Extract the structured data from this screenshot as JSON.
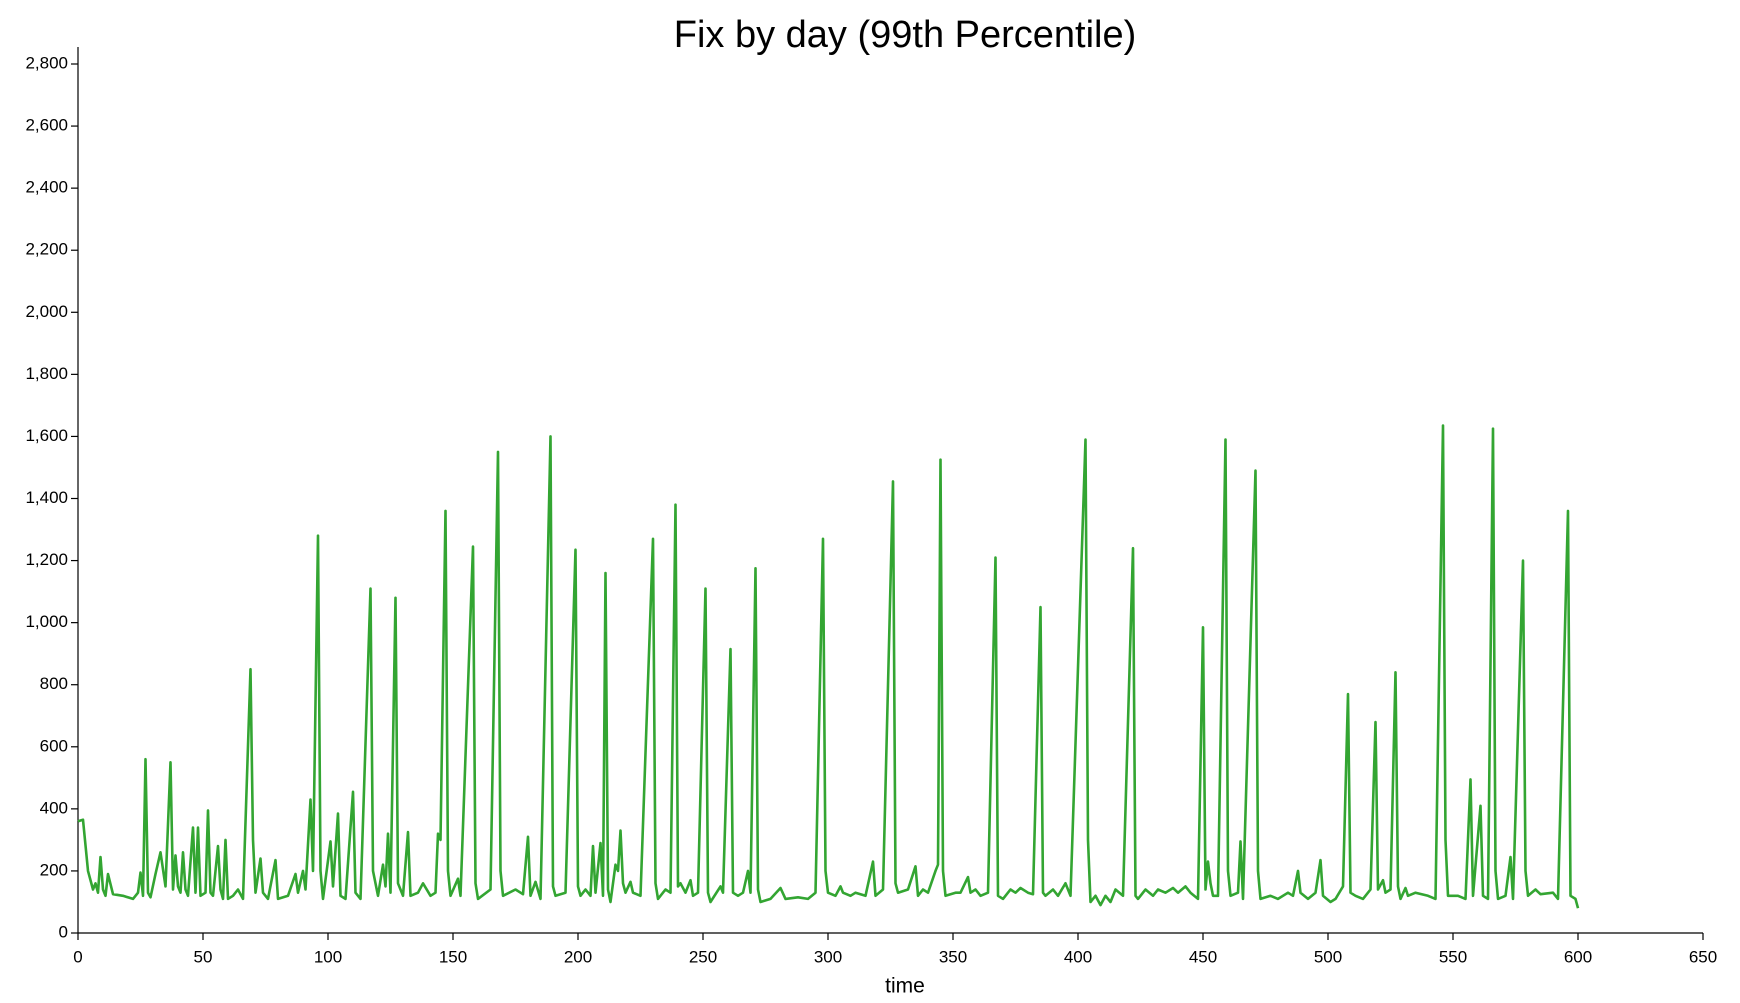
{
  "chart_data": {
    "type": "line",
    "title": "Fix by day (99th Percentile)",
    "x_label": "time",
    "x": [
      0,
      2,
      4,
      6,
      7,
      8,
      9,
      10,
      11,
      12,
      14,
      18,
      22,
      24,
      25,
      26,
      27,
      28,
      29,
      31,
      33,
      35,
      37,
      38,
      39,
      40,
      41,
      42,
      43,
      44,
      46,
      47,
      48,
      49,
      51,
      52,
      53,
      54,
      56,
      57,
      58,
      59,
      60,
      62,
      64,
      66,
      69,
      70,
      71,
      73,
      74,
      76,
      79,
      80,
      84,
      87,
      88,
      90,
      91,
      93,
      94,
      96,
      97,
      98,
      101,
      102,
      104,
      105,
      107,
      110,
      111,
      113,
      117,
      118,
      120,
      122,
      123,
      124,
      125,
      127,
      128,
      130,
      132,
      133,
      136,
      138,
      141,
      143,
      144,
      145,
      147,
      148,
      149,
      152,
      153,
      158,
      159,
      160,
      165,
      168,
      169,
      170,
      175,
      178,
      180,
      181,
      183,
      185,
      189,
      190,
      191,
      195,
      199,
      200,
      201,
      203,
      205,
      206,
      207,
      209,
      210,
      211,
      212,
      213,
      215,
      216,
      217,
      218,
      219,
      221,
      222,
      225,
      230,
      231,
      232,
      235,
      237,
      239,
      240,
      241,
      243,
      245,
      246,
      248,
      251,
      252,
      253,
      257,
      258,
      261,
      262,
      264,
      266,
      268,
      269,
      271,
      272,
      273,
      277,
      281,
      283,
      288,
      292,
      295,
      298,
      299,
      300,
      303,
      305,
      306,
      309,
      311,
      315,
      318,
      319,
      322,
      326,
      327,
      328,
      332,
      335,
      336,
      338,
      340,
      343,
      344,
      345,
      346,
      347,
      351,
      353,
      356,
      357,
      359,
      361,
      364,
      367,
      368,
      370,
      373,
      375,
      377,
      380,
      382,
      385,
      386,
      387,
      390,
      392,
      395,
      397,
      403,
      404,
      405,
      407,
      409,
      411,
      413,
      415,
      418,
      422,
      423,
      424,
      427,
      430,
      432,
      435,
      438,
      440,
      443,
      445,
      448,
      450,
      451,
      452,
      453,
      454,
      456,
      459,
      460,
      461,
      464,
      465,
      466,
      471,
      472,
      473,
      477,
      480,
      484,
      486,
      488,
      489,
      492,
      495,
      497,
      498,
      501,
      503,
      506,
      508,
      509,
      511,
      514,
      517,
      519,
      520,
      522,
      523,
      525,
      527,
      528,
      529,
      531,
      532,
      535,
      540,
      543,
      546,
      547,
      548,
      552,
      555,
      557,
      558,
      561,
      562,
      564,
      566,
      567,
      568,
      571,
      573,
      574,
      578,
      579,
      580,
      583,
      585,
      590,
      592,
      596,
      597,
      599,
      600
    ],
    "series": [
      {
        "name": "99th Percentile",
        "color": "#33a532",
        "values": [
          360,
          365,
          200,
          140,
          160,
          130,
          245,
          140,
          120,
          190,
          125,
          120,
          110,
          130,
          195,
          120,
          560,
          130,
          115,
          190,
          260,
          150,
          550,
          140,
          250,
          150,
          130,
          260,
          140,
          120,
          340,
          130,
          340,
          120,
          130,
          395,
          130,
          120,
          280,
          140,
          110,
          300,
          110,
          120,
          140,
          110,
          850,
          300,
          130,
          240,
          130,
          110,
          235,
          110,
          120,
          190,
          130,
          200,
          140,
          430,
          200,
          1280,
          200,
          110,
          295,
          150,
          385,
          120,
          110,
          455,
          130,
          110,
          1110,
          200,
          120,
          220,
          150,
          320,
          130,
          1080,
          160,
          120,
          325,
          120,
          130,
          160,
          120,
          130,
          320,
          300,
          1360,
          200,
          120,
          175,
          120,
          1245,
          160,
          110,
          140,
          1550,
          200,
          120,
          140,
          125,
          310,
          120,
          165,
          110,
          1600,
          150,
          120,
          130,
          1235,
          150,
          120,
          140,
          120,
          280,
          130,
          290,
          120,
          1160,
          140,
          100,
          220,
          200,
          330,
          160,
          130,
          165,
          130,
          120,
          1270,
          160,
          110,
          140,
          130,
          1380,
          150,
          160,
          130,
          170,
          120,
          130,
          1110,
          130,
          100,
          150,
          130,
          915,
          130,
          120,
          130,
          200,
          130,
          1175,
          140,
          100,
          110,
          145,
          110,
          115,
          110,
          130,
          1270,
          200,
          130,
          120,
          150,
          130,
          120,
          130,
          120,
          230,
          120,
          140,
          1455,
          160,
          130,
          140,
          215,
          120,
          140,
          130,
          200,
          220,
          1525,
          200,
          120,
          130,
          130,
          180,
          130,
          140,
          120,
          130,
          1210,
          120,
          110,
          140,
          130,
          145,
          130,
          125,
          1050,
          130,
          120,
          140,
          120,
          160,
          120,
          1590,
          300,
          100,
          120,
          90,
          120,
          100,
          140,
          120,
          1240,
          120,
          110,
          140,
          120,
          140,
          130,
          145,
          130,
          150,
          130,
          110,
          985,
          140,
          230,
          160,
          120,
          120,
          1590,
          200,
          120,
          130,
          295,
          110,
          1490,
          200,
          110,
          120,
          110,
          130,
          120,
          200,
          130,
          110,
          130,
          235,
          120,
          100,
          110,
          150,
          770,
          130,
          120,
          110,
          140,
          680,
          140,
          170,
          130,
          140,
          840,
          150,
          110,
          145,
          120,
          130,
          120,
          110,
          1635,
          300,
          120,
          120,
          110,
          495,
          120,
          410,
          120,
          110,
          1625,
          200,
          110,
          120,
          245,
          110,
          1200,
          200,
          120,
          140,
          125,
          130,
          110,
          1360,
          120,
          110,
          80
        ]
      }
    ],
    "xlim": [
      0,
      650
    ],
    "xticks": [
      0,
      50,
      100,
      150,
      200,
      250,
      300,
      350,
      400,
      450,
      500,
      550,
      600,
      650
    ],
    "ylim": [
      0,
      2800
    ],
    "yticks": [
      0,
      200,
      400,
      600,
      800,
      {
        "value": 1000,
        "label": "1,000"
      },
      {
        "value": 1200,
        "label": "1,200"
      },
      {
        "value": 1400,
        "label": "1,400"
      },
      {
        "value": 1600,
        "label": "1,600"
      },
      {
        "value": 1800,
        "label": "1,800"
      },
      {
        "value": 2000,
        "label": "2,000"
      },
      {
        "value": 2200,
        "label": "2,200"
      },
      {
        "value": 2400,
        "label": "2,400"
      },
      {
        "value": 2600,
        "label": "2,600"
      },
      {
        "value": 2800,
        "label": "2,800"
      }
    ]
  }
}
